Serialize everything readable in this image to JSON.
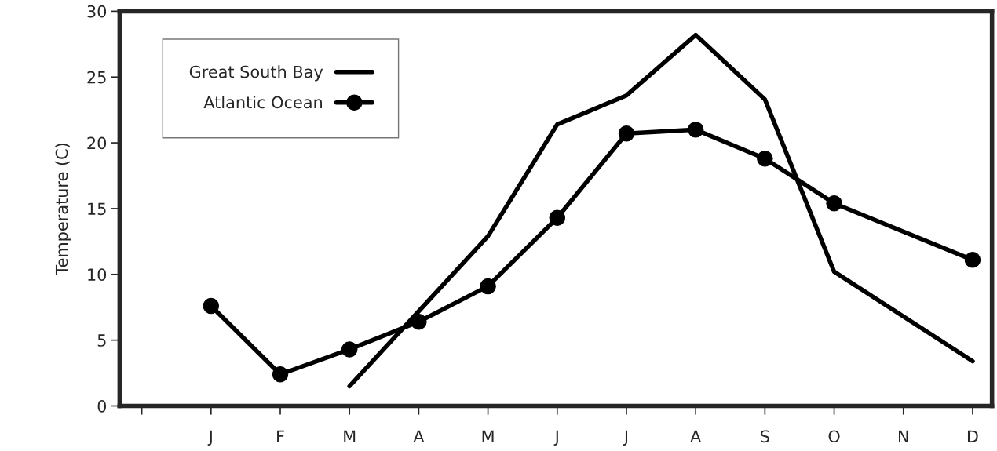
{
  "chart_data": {
    "type": "line",
    "ylabel": "Temperature (C)",
    "categories": [
      null,
      "J",
      "F",
      "M",
      "A",
      "M",
      "J",
      "J",
      "A",
      "S",
      "O",
      "N",
      "D"
    ],
    "series": [
      {
        "name": "Great South Bay",
        "color": "#000000",
        "marker": "none",
        "values": [
          null,
          null,
          null,
          1.5,
          7.2,
          12.9,
          21.4,
          23.6,
          28.2,
          23.3,
          10.2,
          null,
          3.4
        ]
      },
      {
        "name": "Atlantic Ocean",
        "color": "#000000",
        "marker": "circle",
        "values": [
          null,
          7.6,
          2.4,
          4.3,
          6.4,
          9.1,
          14.3,
          20.7,
          21.0,
          18.8,
          15.4,
          null,
          11.1
        ]
      }
    ],
    "ylim": [
      0,
      30
    ],
    "yticks": [
      0,
      5,
      10,
      15,
      20,
      25,
      30
    ],
    "grid": false,
    "legend": "top left",
    "line_style": "solid"
  }
}
